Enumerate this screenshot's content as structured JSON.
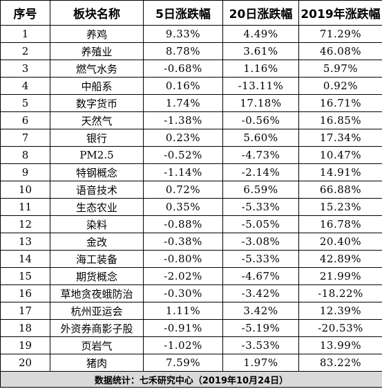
{
  "table": {
    "headers": [
      "序号",
      "板块名称",
      "5日涨跌幅",
      "20日涨跌幅",
      "2019年涨跌幅"
    ],
    "rows": [
      [
        "1",
        "养鸡",
        "9.33%",
        "4.49%",
        "71.29%"
      ],
      [
        "2",
        "养殖业",
        "8.78%",
        "3.61%",
        "46.08%"
      ],
      [
        "3",
        "燃气水务",
        "-0.68%",
        "1.16%",
        "5.97%"
      ],
      [
        "4",
        "中船系",
        "0.16%",
        "-13.11%",
        "0.92%"
      ],
      [
        "5",
        "数字货币",
        "1.74%",
        "17.18%",
        "16.71%"
      ],
      [
        "6",
        "天然气",
        "-1.38%",
        "-0.56%",
        "16.85%"
      ],
      [
        "7",
        "银行",
        "0.23%",
        "5.60%",
        "17.34%"
      ],
      [
        "8",
        "PM2.5",
        "-0.52%",
        "-4.73%",
        "10.47%"
      ],
      [
        "9",
        "特钢概念",
        "-1.14%",
        "-2.14%",
        "14.91%"
      ],
      [
        "10",
        "语音技术",
        "0.72%",
        "6.59%",
        "66.88%"
      ],
      [
        "11",
        "生态农业",
        "0.35%",
        "-5.33%",
        "15.23%"
      ],
      [
        "12",
        "染料",
        "-0.88%",
        "-5.05%",
        "16.78%"
      ],
      [
        "13",
        "金改",
        "-0.38%",
        "-3.08%",
        "20.40%"
      ],
      [
        "14",
        "海工装备",
        "-0.80%",
        "-5.33%",
        "42.89%"
      ],
      [
        "15",
        "期货概念",
        "-2.02%",
        "-4.67%",
        "21.99%"
      ],
      [
        "16",
        "草地贪夜蛾防治",
        "-0.30%",
        "-3.42%",
        "-18.22%"
      ],
      [
        "17",
        "杭州亚运会",
        "1.11%",
        "3.42%",
        "12.39%"
      ],
      [
        "18",
        "外资券商影子股",
        "-0.91%",
        "-5.19%",
        "-20.53%"
      ],
      [
        "19",
        "页岩气",
        "-1.02%",
        "-3.53%",
        "13.99%"
      ],
      [
        "20",
        "猪肉",
        "7.59%",
        "1.97%",
        "83.22%"
      ]
    ],
    "footer": "数据统计：七禾研究中心（2019年10月24日）"
  }
}
